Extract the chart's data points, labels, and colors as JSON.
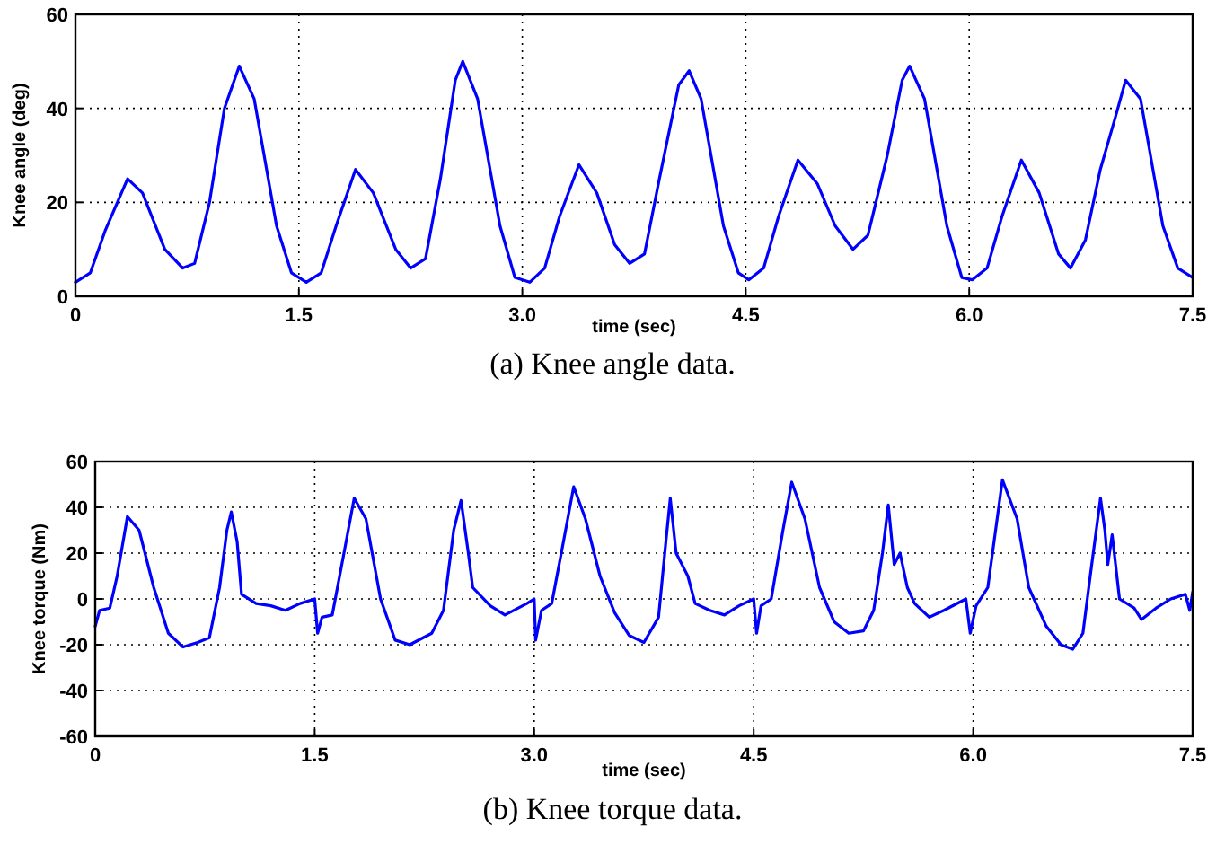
{
  "chart_data": [
    {
      "type": "line",
      "xlabel": "time (sec)",
      "ylabel": "Knee angle (deg)",
      "annotations": [
        "(a) Knee angle data."
      ],
      "xlim": [
        0,
        7.5
      ],
      "xticks": [
        {
          "value": 0,
          "label": "0"
        },
        {
          "value": 1.5,
          "label": "1.5"
        },
        {
          "value": 3,
          "label": "3.0"
        },
        {
          "value": 4.5,
          "label": "4.5"
        },
        {
          "value": 6,
          "label": "6.0"
        },
        {
          "value": 7.5,
          "label": "7.5"
        }
      ],
      "ylim": [
        0,
        60
      ],
      "yticks": [
        0,
        20,
        40,
        60
      ],
      "grid": true,
      "marker": "none",
      "line_style": "solid",
      "series": [
        {
          "color": "#0000ff",
          "x": [
            0,
            0.1,
            0.2,
            0.35,
            0.45,
            0.6,
            0.72,
            0.8,
            0.9,
            1.0,
            1.1,
            1.2,
            1.35,
            1.45,
            1.55,
            1.65,
            1.75,
            1.88,
            2.0,
            2.15,
            2.25,
            2.35,
            2.45,
            2.55,
            2.6,
            2.7,
            2.85,
            2.95,
            3.05,
            3.15,
            3.25,
            3.38,
            3.5,
            3.62,
            3.72,
            3.82,
            3.92,
            4.05,
            4.12,
            4.2,
            4.35,
            4.45,
            4.52,
            4.62,
            4.72,
            4.85,
            4.98,
            5.1,
            5.22,
            5.32,
            5.45,
            5.55,
            5.6,
            5.7,
            5.85,
            5.95,
            6.02,
            6.12,
            6.22,
            6.35,
            6.47,
            6.6,
            6.68,
            6.78,
            6.88,
            6.98,
            7.05,
            7.15,
            7.3,
            7.4,
            7.5
          ],
          "values": [
            3,
            5,
            14,
            25,
            22,
            10,
            6,
            7,
            20,
            40,
            49,
            42,
            15,
            5,
            3,
            5,
            15,
            27,
            22,
            10,
            6,
            8,
            25,
            46,
            50,
            42,
            15,
            4,
            3,
            6,
            17,
            28,
            22,
            11,
            7,
            9,
            25,
            45,
            48,
            42,
            15,
            5,
            3.5,
            6,
            17,
            29,
            24,
            15,
            10,
            13,
            30,
            46,
            49,
            42,
            15,
            4,
            3.5,
            6,
            17,
            29,
            22,
            9,
            6,
            12,
            27,
            38,
            46,
            42,
            15,
            6,
            4
          ]
        }
      ]
    },
    {
      "type": "line",
      "xlabel": "time (sec)",
      "ylabel": "Knee torque (Nm)",
      "annotations": [
        "(b) Knee torque data."
      ],
      "xlim": [
        0,
        7.5
      ],
      "xticks": [
        {
          "value": 0,
          "label": "0"
        },
        {
          "value": 1.5,
          "label": "1.5"
        },
        {
          "value": 3,
          "label": "3.0"
        },
        {
          "value": 4.5,
          "label": "4.5"
        },
        {
          "value": 6,
          "label": "6.0"
        },
        {
          "value": 7.5,
          "label": "7.5"
        }
      ],
      "ylim": [
        -60,
        60
      ],
      "yticks": [
        -60,
        -40,
        -20,
        0,
        20,
        40,
        60
      ],
      "grid": true,
      "marker": "none",
      "line_style": "solid",
      "series": [
        {
          "color": "#0000ff",
          "x": [
            0,
            0.03,
            0.1,
            0.15,
            0.22,
            0.3,
            0.4,
            0.5,
            0.6,
            0.7,
            0.78,
            0.85,
            0.9,
            0.93,
            0.97,
            1.0,
            1.1,
            1.2,
            1.3,
            1.4,
            1.5,
            1.52,
            1.55,
            1.62,
            1.7,
            1.77,
            1.85,
            1.95,
            2.05,
            2.15,
            2.3,
            2.38,
            2.45,
            2.5,
            2.55,
            2.58,
            2.7,
            2.8,
            2.95,
            3.0,
            3.01,
            3.05,
            3.12,
            3.2,
            3.27,
            3.35,
            3.45,
            3.55,
            3.65,
            3.75,
            3.85,
            3.9,
            3.93,
            3.97,
            4.05,
            4.1,
            4.2,
            4.3,
            4.4,
            4.5,
            4.52,
            4.55,
            4.62,
            4.7,
            4.76,
            4.85,
            4.95,
            5.05,
            5.15,
            5.25,
            5.32,
            5.38,
            5.42,
            5.46,
            5.5,
            5.55,
            5.6,
            5.7,
            5.8,
            5.95,
            5.98,
            6.02,
            6.1,
            6.2,
            6.3,
            6.38,
            6.5,
            6.6,
            6.68,
            6.75,
            6.8,
            6.87,
            6.9,
            6.92,
            6.95,
            7.0,
            7.1,
            7.15,
            7.25,
            7.35,
            7.45,
            7.48,
            7.5
          ],
          "values": [
            -12,
            -5,
            -4,
            10,
            36,
            30,
            5,
            -15,
            -21,
            -19,
            -17,
            5,
            30,
            38,
            25,
            2,
            -2,
            -3,
            -5,
            -2,
            0,
            -15,
            -8,
            -7,
            20,
            44,
            35,
            0,
            -18,
            -20,
            -15,
            -5,
            30,
            43,
            20,
            5,
            -3,
            -7,
            -2,
            0,
            -18,
            -5,
            -2,
            25,
            49,
            35,
            10,
            -6,
            -16,
            -19,
            -8,
            25,
            44,
            20,
            10,
            -2,
            -5,
            -7,
            -3,
            0,
            -15,
            -3,
            0,
            30,
            51,
            35,
            5,
            -10,
            -15,
            -14,
            -5,
            20,
            41,
            15,
            20,
            5,
            -2,
            -8,
            -5,
            0,
            -15,
            -3,
            5,
            52,
            35,
            5,
            -12,
            -20,
            -22,
            -15,
            10,
            44,
            30,
            15,
            28,
            0,
            -4,
            -9,
            -4,
            0,
            2,
            -5,
            3
          ]
        }
      ]
    }
  ]
}
